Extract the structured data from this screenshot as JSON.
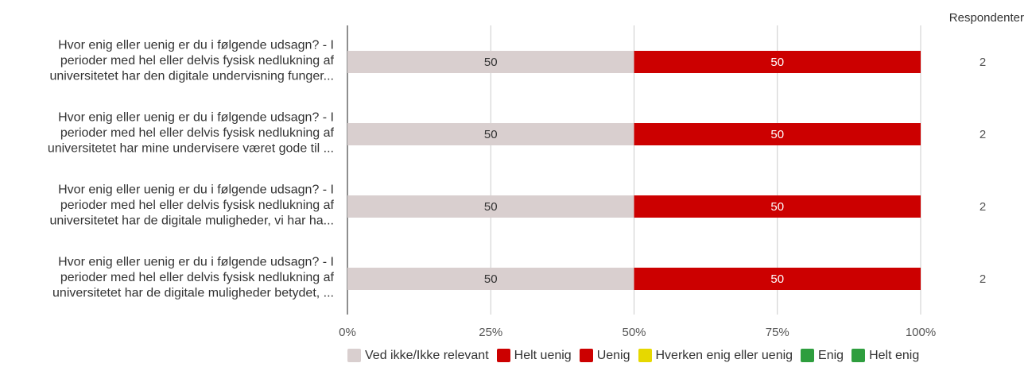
{
  "chart_data": {
    "type": "bar",
    "orientation": "horizontal",
    "stacked": true,
    "categories": [
      [
        "Hvor enig eller uenig er du i følgende udsagn? - I",
        "perioder med hel eller delvis fysisk nedlukning af",
        "universitetet har den digitale undervisning funger..."
      ],
      [
        "Hvor enig eller uenig er du i følgende udsagn? - I",
        "perioder med hel eller delvis fysisk nedlukning af",
        "universitetet har mine undervisere været gode til ..."
      ],
      [
        "Hvor enig eller uenig er du i følgende udsagn? - I",
        "perioder med hel eller delvis fysisk nedlukning af",
        "universitetet har de digitale muligheder, vi har ha..."
      ],
      [
        "Hvor enig eller uenig er du i følgende udsagn? - I",
        "perioder med hel eller delvis fysisk nedlukning af",
        "universitetet har de digitale muligheder betydet, ..."
      ]
    ],
    "series": [
      {
        "name": "Ved ikke/Ikke relevant",
        "color": "#d9cfcf",
        "label_color": "#333333",
        "values": [
          50,
          50,
          50,
          50
        ]
      },
      {
        "name": "Helt uenig",
        "color": "#cc0000",
        "label_color": "#ffffff",
        "values": [
          50,
          50,
          50,
          50
        ]
      },
      {
        "name": "Uenig",
        "color": "#cc0000",
        "label_color": "#ffffff",
        "values": [
          0,
          0,
          0,
          0
        ]
      },
      {
        "name": "Hverken enig eller uenig",
        "color": "#e6d800",
        "label_color": "#333333",
        "values": [
          0,
          0,
          0,
          0
        ]
      },
      {
        "name": "Enig",
        "color": "#2e9e3e",
        "label_color": "#ffffff",
        "values": [
          0,
          0,
          0,
          0
        ]
      },
      {
        "name": "Helt enig",
        "color": "#2e9e3e",
        "label_color": "#ffffff",
        "values": [
          0,
          0,
          0,
          0
        ]
      }
    ],
    "x_ticks": [
      "0%",
      "25%",
      "50%",
      "75%",
      "100%"
    ],
    "xlim": [
      0,
      100
    ],
    "grid": true,
    "legend_position": "bottom",
    "respondents_header": "Respondenter",
    "respondents": [
      "2",
      "2",
      "2",
      "2"
    ]
  }
}
